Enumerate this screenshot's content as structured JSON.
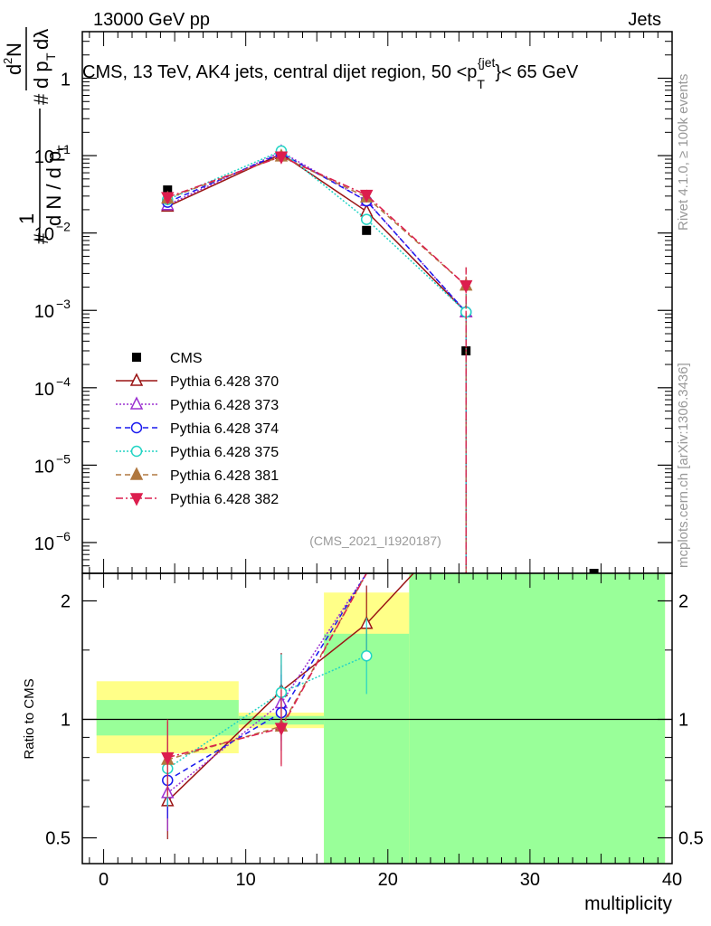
{
  "header": {
    "left": "13000 GeV pp",
    "right": "Jets"
  },
  "side_labels": {
    "rivet": "Rivet 4.1.0, ≥ 100k events",
    "mcplots": "mcplots.cern.ch [arXiv:1306.3436]"
  },
  "analysis_id": "(CMS_2021_I1920187)",
  "colors": {
    "cms": "#000000",
    "p370": "#9a1414",
    "p373": "#9b30d0",
    "p374": "#1a1aee",
    "p375": "#22d4c4",
    "p381": "#b07840",
    "p382": "#dc1e4e",
    "band_stat": "#99ff99",
    "band_total": "#ffff88"
  },
  "chart_data": [
    {
      "type": "line",
      "title": "CMS, 13 TeV, AK4 jets, central dijet region, 50 <p_T^{jet}< 65 GeV",
      "ylabel": "1/dN/dp_T · d²N/dp_T dλ",
      "yscale": "log",
      "ylim": [
        4e-07,
        4
      ],
      "xlim": [
        -1.5,
        40
      ],
      "yticks": [
        {
          "v": 1e-06,
          "label": "10",
          "exp": "−6"
        },
        {
          "v": 1e-05,
          "label": "10",
          "exp": "−5"
        },
        {
          "v": 0.0001,
          "label": "10",
          "exp": "−4"
        },
        {
          "v": 0.001,
          "label": "10",
          "exp": "−3"
        },
        {
          "v": 0.01,
          "label": "10",
          "exp": "−2"
        },
        {
          "v": 0.1,
          "label": "10",
          "exp": "−1"
        },
        {
          "v": 1,
          "label": "1",
          "exp": ""
        }
      ],
      "legend_position": "middle-left",
      "series": [
        {
          "name": "CMS",
          "key": "cms",
          "marker": "square",
          "dash": "",
          "x": [
            4.5,
            12.5,
            18.5,
            25.5,
            34.5
          ],
          "y": [
            0.036,
            0.103,
            0.0108,
            0.0003,
            4e-07
          ]
        },
        {
          "name": "Pythia 6.428 370",
          "key": "p370",
          "marker": "triangle-open",
          "dash": "",
          "x": [
            4.5,
            12.5,
            18.5,
            25.5
          ],
          "y": [
            0.022,
            0.105,
            0.019,
            0.00095
          ]
        },
        {
          "name": "Pythia 6.428 373",
          "key": "p373",
          "marker": "triangle-open",
          "dash": "2,2",
          "x": [
            4.5,
            12.5,
            18.5,
            25.5
          ],
          "y": [
            0.023,
            0.112,
            0.026,
            0.00095
          ]
        },
        {
          "name": "Pythia 6.428 374",
          "key": "p374",
          "marker": "circle-open",
          "dash": "6,4",
          "x": [
            4.5,
            12.5,
            18.5,
            25.5
          ],
          "y": [
            0.025,
            0.107,
            0.026,
            0.00095
          ]
        },
        {
          "name": "Pythia 6.428 375",
          "key": "p375",
          "marker": "circle-open",
          "dash": "2,2",
          "x": [
            4.5,
            12.5,
            18.5,
            25.5
          ],
          "y": [
            0.027,
            0.115,
            0.015,
            0.00095
          ]
        },
        {
          "name": "Pythia 6.428 381",
          "key": "p381",
          "marker": "triangle-filled",
          "dash": "6,4",
          "x": [
            4.5,
            12.5,
            18.5,
            25.5
          ],
          "y": [
            0.028,
            0.098,
            0.029,
            0.0021
          ]
        },
        {
          "name": "Pythia 6.428 382",
          "key": "p382",
          "marker": "triangle-down-filled",
          "dash": "8,3,2,3",
          "x": [
            4.5,
            12.5,
            18.5,
            25.5
          ],
          "y": [
            0.029,
            0.097,
            0.031,
            0.0021
          ]
        }
      ]
    },
    {
      "type": "line",
      "ylabel": "Ratio to CMS",
      "xlabel": "multiplicity",
      "yscale": "log",
      "ylim": [
        0.43,
        2.35
      ],
      "xlim": [
        -1.5,
        40
      ],
      "xticks": [
        0,
        10,
        20,
        30,
        40
      ],
      "yticks": [
        0.5,
        1,
        2
      ],
      "reference_line": 1,
      "bands": [
        {
          "x0": -0.5,
          "x1": 9.5,
          "stat": [
            0.91,
            1.12
          ],
          "total": [
            0.82,
            1.25
          ]
        },
        {
          "x0": 9.5,
          "x1": 15.5,
          "stat": [
            0.97,
            1.02
          ],
          "total": [
            0.95,
            1.04
          ]
        },
        {
          "x0": 15.5,
          "x1": 21.5,
          "stat": [
            0.43,
            1.65
          ],
          "total": [
            0.4,
            2.1
          ]
        },
        {
          "x0": 21.5,
          "x1": 39.5,
          "stat": [
            0.43,
            2.35
          ],
          "total": [
            0.43,
            2.35
          ]
        }
      ],
      "series": [
        {
          "key": "p370",
          "marker": "triangle-open",
          "dash": "",
          "x": [
            4.5,
            12.5,
            18.5,
            21.8
          ],
          "y": [
            0.62,
            1.18,
            1.75,
            2.35
          ]
        },
        {
          "key": "p373",
          "marker": "triangle-open",
          "dash": "2,2",
          "x": [
            4.5,
            12.5,
            18.5
          ],
          "y": [
            0.65,
            1.1,
            2.35
          ]
        },
        {
          "key": "p374",
          "marker": "circle-open",
          "dash": "6,4",
          "x": [
            4.5,
            12.5,
            18.5
          ],
          "y": [
            0.7,
            1.04,
            2.35
          ]
        },
        {
          "key": "p375",
          "marker": "circle-open",
          "dash": "2,2",
          "x": [
            4.5,
            12.5,
            18.5
          ],
          "y": [
            0.75,
            1.17,
            1.45
          ]
        },
        {
          "key": "p381",
          "marker": "triangle-filled",
          "dash": "6,4",
          "x": [
            4.5,
            12.5,
            18.5
          ],
          "y": [
            0.79,
            0.96,
            2.35
          ]
        },
        {
          "key": "p382",
          "marker": "triangle-down-filled",
          "dash": "8,3,2,3",
          "x": [
            4.5,
            12.5,
            18.5
          ],
          "y": [
            0.8,
            0.95,
            2.35
          ]
        }
      ]
    }
  ]
}
